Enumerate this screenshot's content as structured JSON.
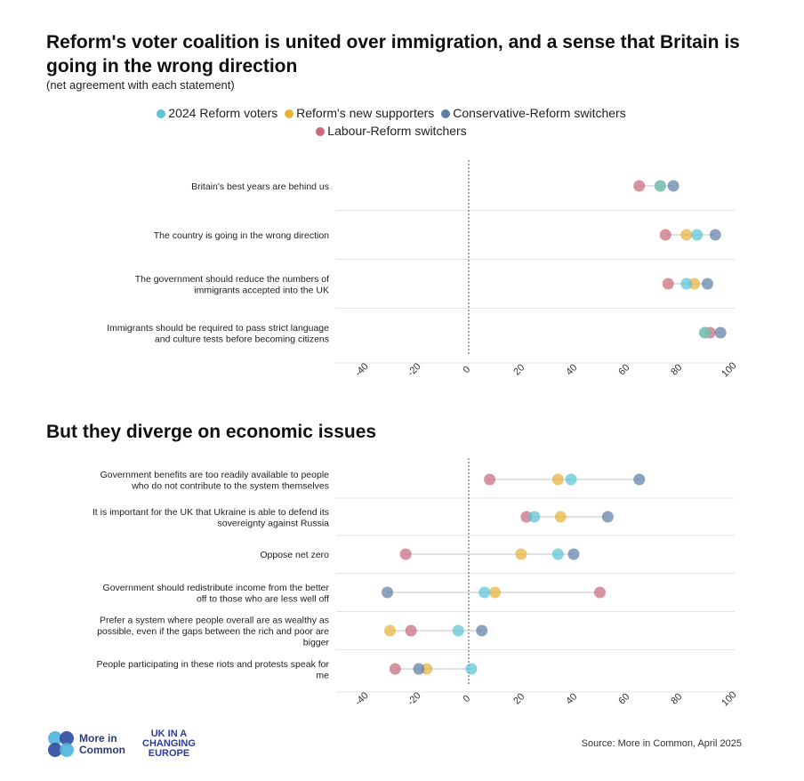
{
  "header": {
    "title": "Reform's voter coalition is united over immigration, and a sense that Britain is going in the wrong direction",
    "subtitle": "(net agreement with each statement)",
    "section2_title": "But they diverge on economic issues"
  },
  "legend": [
    {
      "name": "2024 Reform voters",
      "color": "#5bc3d6"
    },
    {
      "name": "Reform's new supporters",
      "color": "#e8b13c"
    },
    {
      "name": "Conservative-Reform switchers",
      "color": "#5f7fa8"
    },
    {
      "name": "Labour-Reform switchers",
      "color": "#c9697f"
    }
  ],
  "footer": {
    "logo1": "More in Common",
    "logo2": "UK IN A CHANGING EUROPE",
    "source": "Source: More in Common, April 2025"
  },
  "chart_data": [
    {
      "type": "dot",
      "xlim": [
        -40,
        100
      ],
      "ticks": [
        -40,
        -20,
        0,
        20,
        40,
        60,
        80,
        100
      ],
      "categories": [
        "Britain's best years are behind us",
        "The country is going in the wrong direction",
        "The government should reduce the numbers of immigrants accepted into the UK",
        "Immigrants should be required to pass strict language and culture tests before becoming citizens"
      ],
      "series": [
        {
          "name": "2024 Reform voters",
          "values": [
            73,
            87,
            83,
            90
          ]
        },
        {
          "name": "Reform's new supporters",
          "values": [
            73,
            83,
            86,
            90
          ]
        },
        {
          "name": "Conservative-Reform switchers",
          "values": [
            78,
            94,
            91,
            96
          ]
        },
        {
          "name": "Labour-Reform switchers",
          "values": [
            65,
            75,
            76,
            92
          ]
        }
      ]
    },
    {
      "type": "dot",
      "xlim": [
        -40,
        100
      ],
      "ticks": [
        -40,
        -20,
        0,
        20,
        40,
        60,
        80,
        100
      ],
      "categories": [
        "Government benefits are too readily available to people who do not contribute to the system themselves",
        "It is important for the UK that Ukraine is able to defend its sovereignty against Russia",
        "Oppose net zero",
        "Government should redistribute income from the better off to those who are less well off",
        "Prefer a system where people overall are as wealthy as possible, even if the gaps between the rich and poor are bigger",
        "People participating in these riots and protests speak for me"
      ],
      "series": [
        {
          "name": "2024 Reform voters",
          "values": [
            39,
            25,
            34,
            6,
            -4,
            1
          ]
        },
        {
          "name": "Reform's new supporters",
          "values": [
            34,
            35,
            20,
            10,
            -30,
            -16
          ]
        },
        {
          "name": "Conservative-Reform switchers",
          "values": [
            65,
            53,
            40,
            -31,
            5,
            -19
          ]
        },
        {
          "name": "Labour-Reform switchers",
          "values": [
            8,
            22,
            -24,
            50,
            -22,
            -28
          ]
        }
      ]
    }
  ]
}
